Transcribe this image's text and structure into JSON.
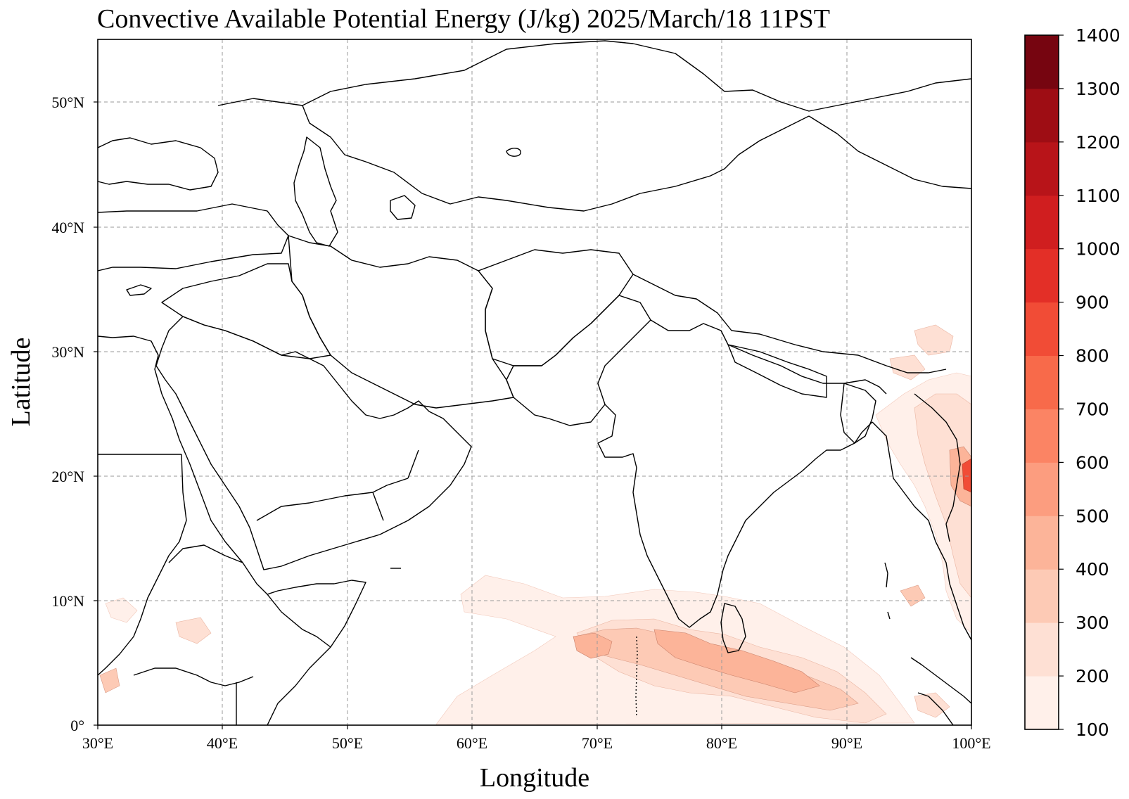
{
  "title": "Convective Available Potential Energy (J/kg)  2025/March/18 11PST",
  "x_axis": {
    "label": "Longitude",
    "ticks": [
      "30°E",
      "40°E",
      "50°E",
      "60°E",
      "70°E",
      "80°E",
      "90°E",
      "100°E"
    ]
  },
  "y_axis": {
    "label": "Latitude",
    "ticks": [
      "0°",
      "10°N",
      "20°N",
      "30°N",
      "40°N",
      "50°N"
    ]
  },
  "colorbar": {
    "levels": [
      "100",
      "200",
      "300",
      "400",
      "500",
      "600",
      "700",
      "800",
      "900",
      "1000",
      "1100",
      "1200",
      "1300",
      "1400"
    ],
    "colors": [
      "#fff0ea",
      "#fee0d4",
      "#fdcab5",
      "#fcb499",
      "#fc9d7f",
      "#fb8464",
      "#f86a4a",
      "#f14c36",
      "#e32f27",
      "#d01e1f",
      "#b81419",
      "#9e0d14",
      "#760510"
    ]
  },
  "chart_data": {
    "type": "map",
    "field": "Convective Available Potential Energy",
    "units": "J/kg",
    "valid_time": "2025/March/18 11PST",
    "lon_range": [
      30,
      100
    ],
    "lat_range": [
      0,
      55
    ],
    "levels": [
      100,
      200,
      300,
      400,
      500,
      600,
      700,
      800,
      900,
      1000,
      1100,
      1200,
      1300,
      1400
    ],
    "grid": true
  }
}
